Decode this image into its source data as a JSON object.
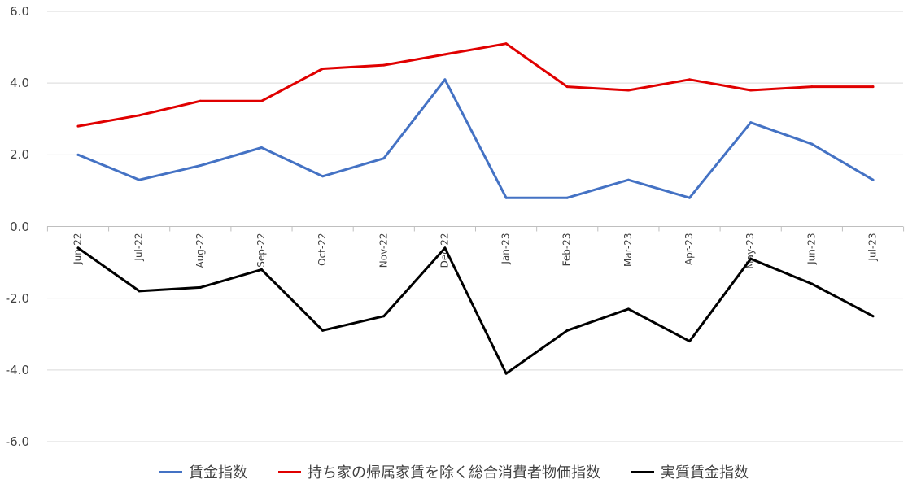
{
  "chart_data": {
    "type": "line",
    "categories": [
      "Jun-22",
      "Jul-22",
      "Aug-22",
      "Sep-22",
      "Oct-22",
      "Nov-22",
      "Dec-22",
      "Jan-23",
      "Feb-23",
      "Mar-23",
      "Apr-23",
      "May-23",
      "Jun-23",
      "Jul-23"
    ],
    "series": [
      {
        "name": "賃金指数",
        "color": "#4472c4",
        "values": [
          2.0,
          1.3,
          1.7,
          2.2,
          1.4,
          1.9,
          4.1,
          0.8,
          0.8,
          1.3,
          0.8,
          2.9,
          2.3,
          1.3
        ]
      },
      {
        "name": "持ち家の帰属家賃を除く総合消費者物価指数",
        "color": "#e00000",
        "values": [
          2.8,
          3.1,
          3.5,
          3.5,
          4.4,
          4.5,
          4.8,
          5.1,
          3.9,
          3.8,
          4.1,
          3.8,
          3.9,
          3.9
        ]
      },
      {
        "name": "実質賃金指数",
        "color": "#000000",
        "values": [
          -0.6,
          -1.8,
          -1.7,
          -1.2,
          -2.9,
          -2.5,
          -0.6,
          -4.1,
          -2.9,
          -2.3,
          -3.2,
          -0.9,
          -1.6,
          -2.5
        ]
      }
    ],
    "ylim": [
      -6.0,
      6.0
    ],
    "yticks": [
      "6.0",
      "4.0",
      "2.0",
      "0.0",
      "-2.0",
      "-4.0",
      "-6.0"
    ],
    "ytick_values": [
      6,
      4,
      2,
      0,
      -2,
      -4,
      -6
    ],
    "grid": true,
    "legend_position": "bottom",
    "title": "",
    "xlabel": "",
    "ylabel": ""
  }
}
